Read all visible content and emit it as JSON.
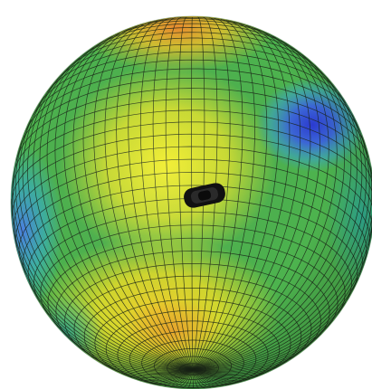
{
  "figure": {
    "subject": "meshed-sphere-colormap",
    "colors": {
      "background": "#ffffff",
      "green": "#47b24f",
      "yellow": "#e8e427",
      "orange": "#e99a2d",
      "cyan": "#35b6a6",
      "blue": "#4b6fe0",
      "deep_blue": "#2f3fcf",
      "mesh_line": "#1a2418",
      "sensor_body": "#111111"
    }
  }
}
